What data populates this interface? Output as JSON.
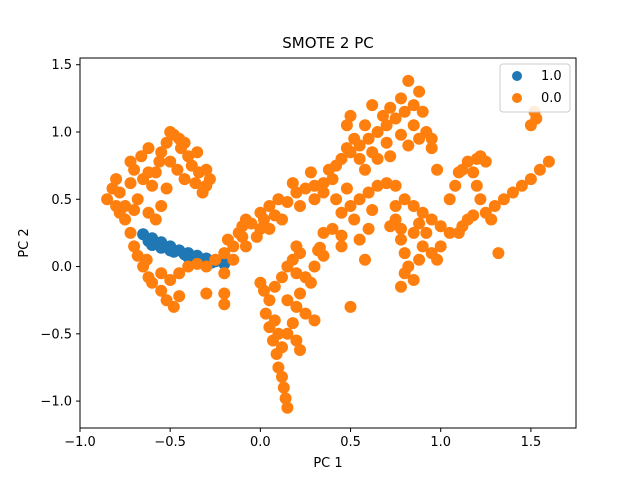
{
  "chart_data": {
    "type": "scatter",
    "title": "SMOTE 2 PC",
    "xlabel": "PC 1",
    "ylabel": "PC 2",
    "xlim": [
      -1.0,
      1.75
    ],
    "ylim": [
      -1.2,
      1.55
    ],
    "xticks": [
      -1.0,
      -0.5,
      0.0,
      0.5,
      1.0,
      1.5
    ],
    "xtick_labels": [
      "−1.0",
      "−0.5",
      "0.0",
      "0.5",
      "1.0",
      "1.5"
    ],
    "yticks": [
      -1.0,
      -0.5,
      0.0,
      0.5,
      1.0,
      1.5
    ],
    "ytick_labels": [
      "−1.0",
      "−0.5",
      "0.0",
      "0.5",
      "1.0",
      "1.5"
    ],
    "grid": false,
    "legend_position": "top-right",
    "series": [
      {
        "name": "1.0",
        "color": "#1f77b4",
        "points": [
          [
            -0.65,
            0.24
          ],
          [
            -0.6,
            0.21
          ],
          [
            -0.55,
            0.18
          ],
          [
            -0.5,
            0.15
          ],
          [
            -0.45,
            0.12
          ],
          [
            -0.4,
            0.1
          ],
          [
            -0.35,
            0.08
          ],
          [
            -0.3,
            0.06
          ],
          [
            -0.25,
            0.04
          ],
          [
            -0.2,
            0.02
          ],
          [
            -0.62,
            0.19
          ],
          [
            -0.55,
            0.14
          ],
          [
            -0.48,
            0.11
          ],
          [
            -0.4,
            0.07
          ],
          [
            -0.33,
            0.05
          ],
          [
            -0.27,
            0.03
          ],
          [
            -0.6,
            0.16
          ],
          [
            -0.5,
            0.12
          ],
          [
            -0.42,
            0.09
          ],
          [
            -0.36,
            0.06
          ],
          [
            -0.3,
            0.04
          ]
        ]
      },
      {
        "name": "0.0",
        "color": "#ff7f0e",
        "points": [
          [
            -0.85,
            0.5
          ],
          [
            -0.82,
            0.58
          ],
          [
            -0.8,
            0.65
          ],
          [
            -0.78,
            0.55
          ],
          [
            -0.75,
            0.45
          ],
          [
            -0.72,
            0.62
          ],
          [
            -0.7,
            0.72
          ],
          [
            -0.68,
            0.5
          ],
          [
            -0.66,
            0.82
          ],
          [
            -0.62,
            0.88
          ],
          [
            -0.6,
            0.6
          ],
          [
            -0.58,
            0.7
          ],
          [
            -0.55,
            0.85
          ],
          [
            -0.52,
            0.92
          ],
          [
            -0.5,
            0.78
          ],
          [
            -0.48,
            0.98
          ],
          [
            -0.46,
            0.72
          ],
          [
            -0.44,
            0.88
          ],
          [
            -0.42,
            0.65
          ],
          [
            -0.4,
            0.82
          ],
          [
            -0.38,
            0.75
          ],
          [
            -0.36,
            0.62
          ],
          [
            -0.34,
            0.7
          ],
          [
            -0.32,
            0.55
          ],
          [
            -0.3,
            0.6
          ],
          [
            -0.5,
            1.0
          ],
          [
            -0.45,
            0.95
          ],
          [
            -0.75,
            0.35
          ],
          [
            -0.72,
            0.25
          ],
          [
            -0.7,
            0.15
          ],
          [
            -0.68,
            0.08
          ],
          [
            -0.65,
            0.0
          ],
          [
            -0.62,
            -0.08
          ],
          [
            -0.6,
            -0.12
          ],
          [
            -0.55,
            -0.18
          ],
          [
            -0.52,
            -0.25
          ],
          [
            -0.48,
            -0.3
          ],
          [
            -0.45,
            -0.22
          ],
          [
            -0.5,
            -0.1
          ],
          [
            -0.55,
            -0.05
          ],
          [
            -0.63,
            0.05
          ],
          [
            -0.45,
            -0.05
          ],
          [
            -0.4,
            0.0
          ],
          [
            -0.35,
            0.02
          ],
          [
            -0.3,
            0.0
          ],
          [
            -0.25,
            0.05
          ],
          [
            -0.2,
            0.1
          ],
          [
            -0.18,
            0.2
          ],
          [
            -0.15,
            0.15
          ],
          [
            -0.12,
            0.25
          ],
          [
            -0.1,
            0.3
          ],
          [
            -0.08,
            0.35
          ],
          [
            -0.05,
            0.32
          ],
          [
            0.0,
            0.4
          ],
          [
            0.05,
            0.45
          ],
          [
            0.08,
            0.38
          ],
          [
            0.1,
            0.5
          ],
          [
            0.15,
            0.48
          ],
          [
            0.2,
            0.55
          ],
          [
            0.25,
            0.58
          ],
          [
            0.3,
            0.6
          ],
          [
            0.35,
            0.62
          ],
          [
            0.18,
            0.62
          ],
          [
            0.28,
            0.7
          ],
          [
            0.38,
            0.72
          ],
          [
            0.45,
            0.8
          ],
          [
            0.5,
            0.85
          ],
          [
            0.55,
            0.9
          ],
          [
            0.6,
            0.95
          ],
          [
            0.65,
            1.0
          ],
          [
            0.7,
            1.05
          ],
          [
            0.75,
            1.1
          ],
          [
            0.8,
            1.15
          ],
          [
            0.85,
            1.2
          ],
          [
            0.88,
            1.3
          ],
          [
            0.82,
            1.38
          ],
          [
            0.78,
            1.25
          ],
          [
            0.72,
            1.18
          ],
          [
            0.68,
            1.12
          ],
          [
            0.62,
            1.2
          ],
          [
            0.58,
            1.05
          ],
          [
            0.52,
            0.95
          ],
          [
            0.48,
            0.88
          ],
          [
            0.55,
            0.8
          ],
          [
            0.62,
            0.85
          ],
          [
            0.7,
            0.92
          ],
          [
            0.78,
            0.98
          ],
          [
            0.85,
            1.05
          ],
          [
            0.9,
            1.15
          ],
          [
            0.92,
            1.0
          ],
          [
            0.95,
            0.95
          ],
          [
            0.5,
            1.12
          ],
          [
            0.48,
            1.05
          ],
          [
            0.42,
            0.75
          ],
          [
            0.4,
            0.65
          ],
          [
            0.35,
            0.55
          ],
          [
            0.3,
            0.5
          ],
          [
            0.22,
            0.45
          ],
          [
            0.12,
            0.35
          ],
          [
            0.05,
            0.28
          ],
          [
            -0.02,
            0.22
          ],
          [
            -0.08,
            0.15
          ],
          [
            -0.15,
            0.05
          ],
          [
            -0.2,
            -0.05
          ],
          [
            -0.2,
            -0.2
          ],
          [
            -0.2,
            -0.28
          ],
          [
            -0.3,
            -0.2
          ],
          [
            0.0,
            -0.12
          ],
          [
            0.02,
            -0.18
          ],
          [
            0.05,
            -0.25
          ],
          [
            0.08,
            -0.15
          ],
          [
            0.12,
            -0.08
          ],
          [
            0.15,
            0.0
          ],
          [
            0.18,
            0.05
          ],
          [
            0.2,
            -0.05
          ],
          [
            0.25,
            -0.08
          ],
          [
            0.28,
            -0.12
          ],
          [
            0.3,
            0.0
          ],
          [
            0.22,
            -0.2
          ],
          [
            0.15,
            -0.25
          ],
          [
            0.2,
            -0.3
          ],
          [
            0.25,
            -0.35
          ],
          [
            0.3,
            -0.4
          ],
          [
            0.2,
            0.15
          ],
          [
            0.22,
            0.1
          ],
          [
            0.03,
            -0.35
          ],
          [
            0.05,
            -0.45
          ],
          [
            0.07,
            -0.55
          ],
          [
            0.09,
            -0.65
          ],
          [
            0.1,
            -0.75
          ],
          [
            0.12,
            -0.82
          ],
          [
            0.13,
            -0.9
          ],
          [
            0.14,
            -0.98
          ],
          [
            0.15,
            -1.05
          ],
          [
            0.12,
            -0.6
          ],
          [
            0.15,
            -0.5
          ],
          [
            0.18,
            -0.42
          ],
          [
            0.2,
            -0.55
          ],
          [
            0.22,
            -0.62
          ],
          [
            0.08,
            -0.4
          ],
          [
            0.1,
            -0.5
          ],
          [
            0.32,
            0.12
          ],
          [
            0.35,
            0.25
          ],
          [
            0.4,
            0.28
          ],
          [
            0.45,
            0.4
          ],
          [
            0.5,
            0.45
          ],
          [
            0.55,
            0.5
          ],
          [
            0.6,
            0.55
          ],
          [
            0.65,
            0.6
          ],
          [
            0.7,
            0.62
          ],
          [
            0.75,
            0.6
          ],
          [
            0.8,
            0.5
          ],
          [
            0.85,
            0.45
          ],
          [
            0.9,
            0.4
          ],
          [
            0.95,
            0.35
          ],
          [
            1.0,
            0.3
          ],
          [
            1.05,
            0.25
          ],
          [
            0.75,
            0.35
          ],
          [
            0.78,
            0.2
          ],
          [
            0.8,
            0.1
          ],
          [
            0.82,
            0.0
          ],
          [
            0.8,
            -0.05
          ],
          [
            0.78,
            -0.15
          ],
          [
            0.85,
            -0.1
          ],
          [
            0.88,
            0.05
          ],
          [
            0.9,
            0.15
          ],
          [
            0.85,
            0.25
          ],
          [
            0.78,
            0.28
          ],
          [
            0.75,
            0.45
          ],
          [
            0.72,
            0.3
          ],
          [
            0.88,
            0.32
          ],
          [
            0.92,
            0.25
          ],
          [
            0.95,
            0.1
          ],
          [
            0.98,
            0.05
          ],
          [
            1.0,
            0.15
          ],
          [
            1.05,
            0.5
          ],
          [
            1.08,
            0.6
          ],
          [
            1.1,
            0.7
          ],
          [
            1.12,
            0.72
          ],
          [
            1.15,
            0.78
          ],
          [
            1.18,
            0.7
          ],
          [
            1.2,
            0.8
          ],
          [
            1.22,
            0.82
          ],
          [
            1.25,
            0.78
          ],
          [
            1.2,
            0.6
          ],
          [
            1.22,
            0.5
          ],
          [
            1.25,
            0.4
          ],
          [
            1.28,
            0.35
          ],
          [
            1.3,
            0.45
          ],
          [
            1.35,
            0.5
          ],
          [
            1.4,
            0.55
          ],
          [
            1.45,
            0.6
          ],
          [
            1.5,
            0.65
          ],
          [
            1.55,
            0.72
          ],
          [
            1.6,
            0.78
          ],
          [
            1.12,
            0.3
          ],
          [
            1.15,
            0.35
          ],
          [
            1.18,
            0.38
          ],
          [
            1.1,
            0.25
          ],
          [
            1.32,
            0.1
          ],
          [
            1.52,
            1.15
          ],
          [
            1.5,
            1.05
          ],
          [
            1.53,
            1.1
          ],
          [
            0.95,
            0.88
          ],
          [
            0.98,
            0.72
          ],
          [
            0.6,
            0.28
          ],
          [
            0.55,
            0.2
          ],
          [
            0.45,
            0.23
          ],
          [
            0.33,
            0.14
          ],
          [
            -0.8,
            0.45
          ],
          [
            -0.78,
            0.4
          ],
          [
            -0.7,
            0.42
          ],
          [
            -0.62,
            0.4
          ],
          [
            -0.58,
            0.35
          ],
          [
            -0.55,
            0.45
          ],
          [
            -0.52,
            0.58
          ],
          [
            -0.62,
            0.7
          ],
          [
            -0.56,
            0.78
          ],
          [
            -0.42,
            0.92
          ],
          [
            -0.35,
            0.85
          ],
          [
            -0.28,
            0.65
          ],
          [
            -0.3,
            0.72
          ],
          [
            -0.72,
            0.78
          ],
          [
            -0.65,
            0.65
          ],
          [
            0.0,
            0.28
          ],
          [
            0.02,
            0.35
          ],
          [
            -0.1,
            0.22
          ],
          [
            0.42,
            0.5
          ],
          [
            0.48,
            0.58
          ],
          [
            0.58,
            0.72
          ],
          [
            0.65,
            0.8
          ],
          [
            0.72,
            0.82
          ],
          [
            0.82,
            0.9
          ],
          [
            0.88,
            0.95
          ],
          [
            0.62,
            0.42
          ],
          [
            0.52,
            0.35
          ],
          [
            0.45,
            0.15
          ],
          [
            0.35,
            0.08
          ],
          [
            0.5,
            -0.3
          ],
          [
            0.58,
            0.05
          ]
        ]
      }
    ]
  },
  "legend": {
    "items": [
      {
        "label": "1.0",
        "color": "#1f77b4"
      },
      {
        "label": "0.0",
        "color": "#ff7f0e"
      }
    ]
  }
}
